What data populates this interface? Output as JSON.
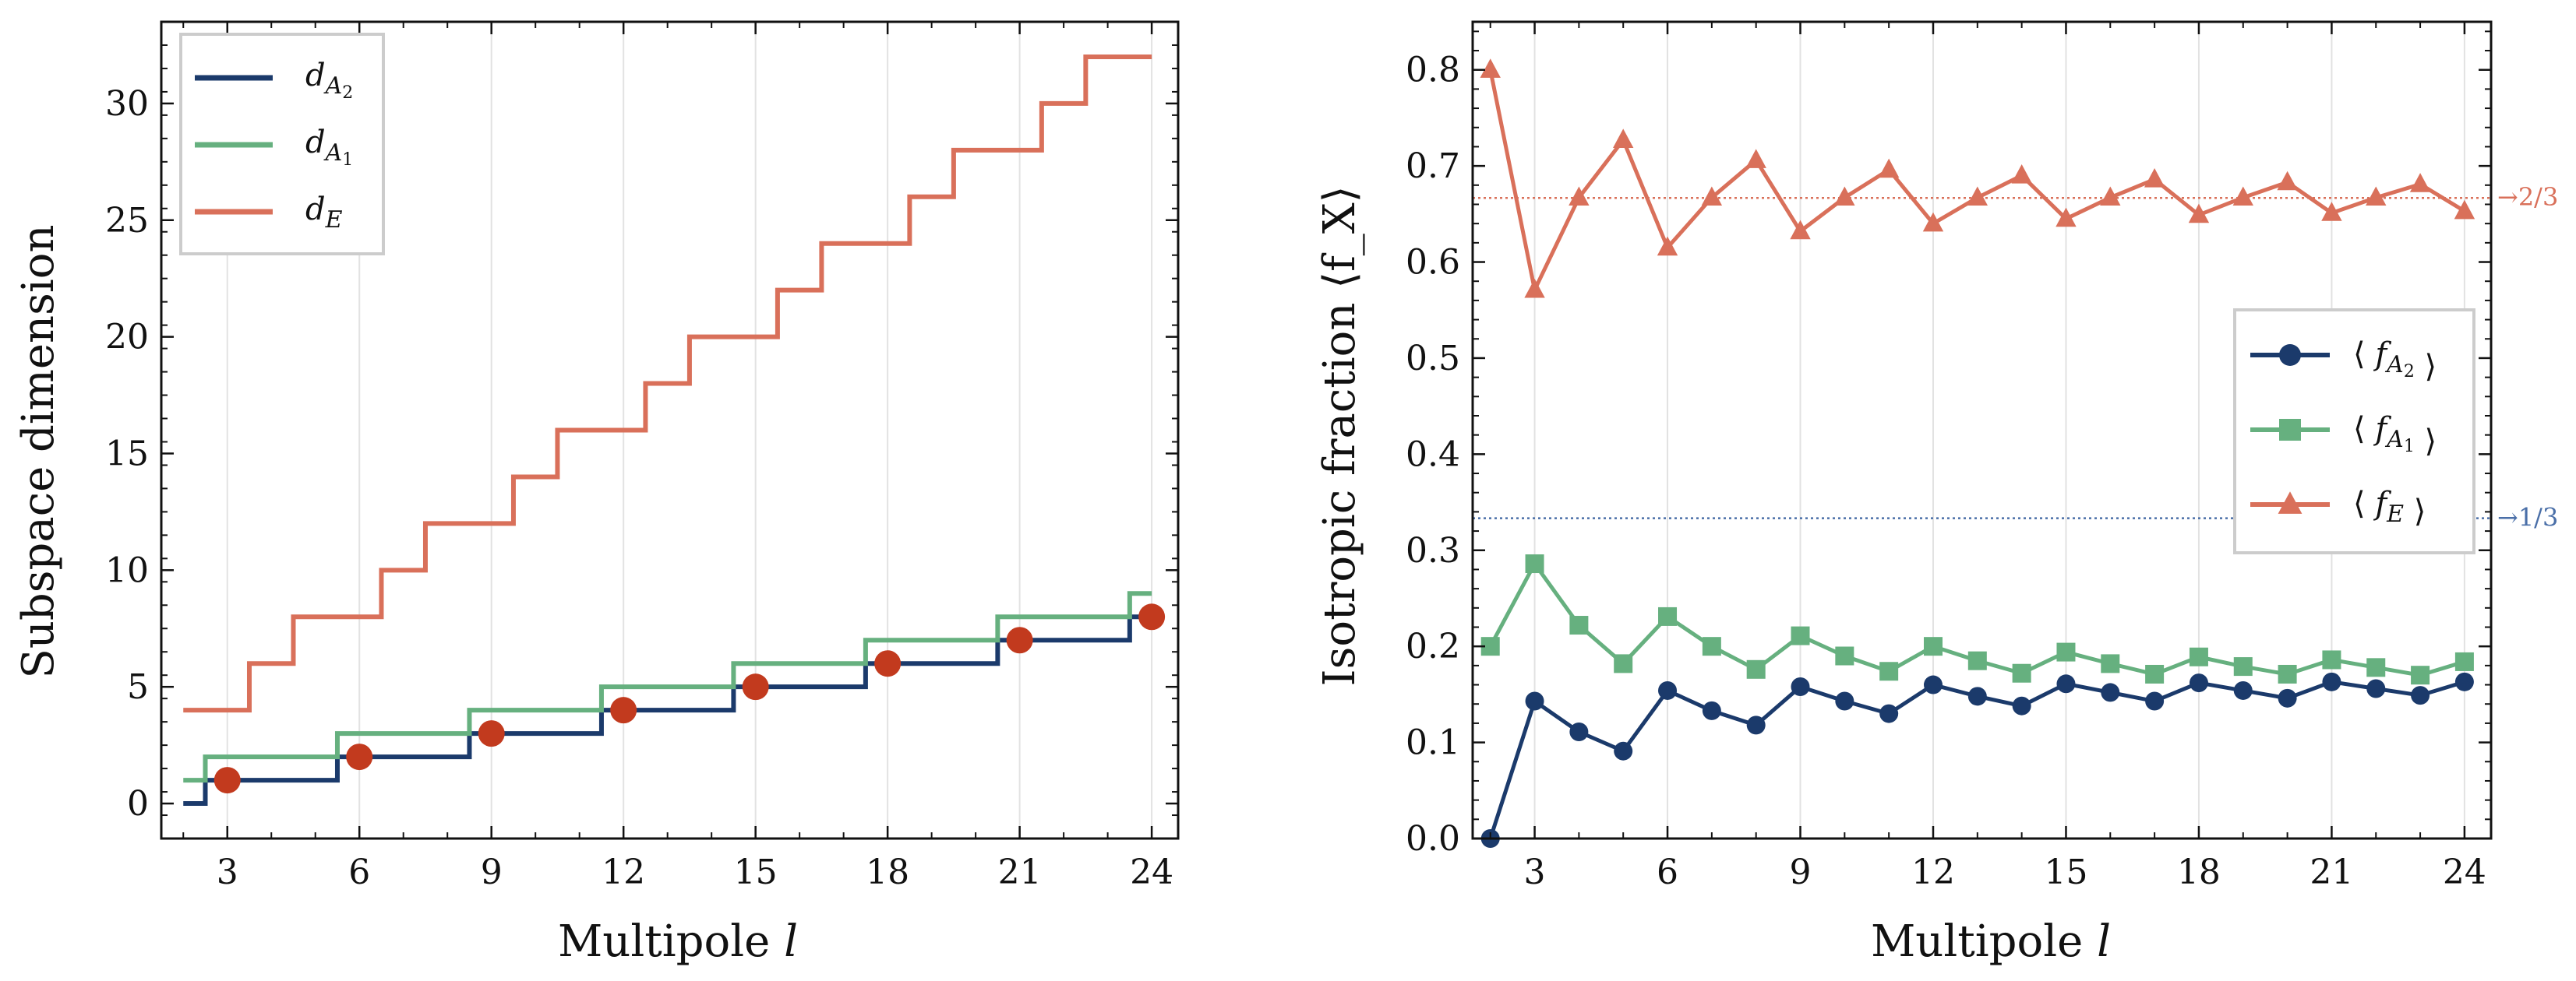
{
  "colors": {
    "a2": "#1b3a6b",
    "a1": "#66b07f",
    "e": "#d9705a",
    "marker": "#c23a1e",
    "ref_e": "#d9705a",
    "ref_a": "#4a6fa8"
  },
  "chart_data": [
    {
      "type": "line",
      "title": "",
      "xlabel": "Multipole l",
      "ylabel": "Subspace dimension",
      "xlim": [
        1.5,
        24.6
      ],
      "ylim": [
        -1.5,
        33.5
      ],
      "xticks": [
        3,
        6,
        9,
        12,
        15,
        18,
        21,
        24
      ],
      "yticks": [
        0,
        5,
        10,
        15,
        20,
        25,
        30
      ],
      "grid": "vertical",
      "legend": "top-left",
      "series": [
        {
          "name": "d_{A2}",
          "key": "a2",
          "step": true,
          "x": [
            2,
            3,
            4,
            5,
            6,
            7,
            8,
            9,
            10,
            11,
            12,
            13,
            14,
            15,
            16,
            17,
            18,
            19,
            20,
            21,
            22,
            23,
            24
          ],
          "values": [
            0,
            1,
            1,
            1,
            2,
            2,
            2,
            3,
            3,
            3,
            4,
            4,
            4,
            5,
            5,
            5,
            6,
            6,
            6,
            7,
            7,
            7,
            8
          ]
        },
        {
          "name": "d_{A1}",
          "key": "a1",
          "step": true,
          "x": [
            2,
            3,
            4,
            5,
            6,
            7,
            8,
            9,
            10,
            11,
            12,
            13,
            14,
            15,
            16,
            17,
            18,
            19,
            20,
            21,
            22,
            23,
            24
          ],
          "values": [
            1,
            2,
            2,
            2,
            3,
            3,
            3,
            4,
            4,
            4,
            5,
            5,
            5,
            6,
            6,
            6,
            7,
            7,
            7,
            8,
            8,
            8,
            9
          ]
        },
        {
          "name": "d_E",
          "key": "e",
          "step": true,
          "x": [
            2,
            3,
            4,
            5,
            6,
            7,
            8,
            9,
            10,
            11,
            12,
            13,
            14,
            15,
            16,
            17,
            18,
            19,
            20,
            21,
            22,
            23,
            24
          ],
          "values": [
            4,
            4,
            6,
            8,
            8,
            10,
            12,
            12,
            14,
            16,
            16,
            18,
            20,
            20,
            22,
            24,
            24,
            26,
            28,
            28,
            30,
            32,
            32
          ]
        },
        {
          "name": "",
          "key": "marker",
          "markers_only": true,
          "x": [
            3,
            6,
            9,
            12,
            15,
            18,
            21,
            24
          ],
          "values": [
            1,
            2,
            3,
            4,
            5,
            6,
            7,
            8
          ]
        }
      ]
    },
    {
      "type": "line",
      "title": "",
      "xlabel": "Multipole l",
      "ylabel": "Isotropic fraction ⟨f_X⟩",
      "xlim": [
        1.6,
        24.6
      ],
      "ylim": [
        0.0,
        0.85
      ],
      "xticks": [
        3,
        6,
        9,
        12,
        15,
        18,
        21,
        24
      ],
      "yticks": [
        0.0,
        0.1,
        0.2,
        0.3,
        0.4,
        0.5,
        0.6,
        0.7,
        0.8
      ],
      "ytick_labels": [
        "0.0",
        "0.1",
        "0.2",
        "0.3",
        "0.4",
        "0.5",
        "0.6",
        "0.7",
        "0.8"
      ],
      "grid": "vertical",
      "legend": "center-right",
      "series": [
        {
          "name": "⟨f_{A2}⟩",
          "key": "a2",
          "marker": "circle",
          "x": [
            2,
            3,
            4,
            5,
            6,
            7,
            8,
            9,
            10,
            11,
            12,
            13,
            14,
            15,
            16,
            17,
            18,
            19,
            20,
            21,
            22,
            23,
            24
          ],
          "values": [
            0.0,
            0.143,
            0.111,
            0.091,
            0.154,
            0.133,
            0.118,
            0.158,
            0.143,
            0.13,
            0.16,
            0.148,
            0.138,
            0.161,
            0.152,
            0.143,
            0.162,
            0.154,
            0.146,
            0.163,
            0.156,
            0.149,
            0.163
          ]
        },
        {
          "name": "⟨f_{A1}⟩",
          "key": "a1",
          "marker": "square",
          "x": [
            2,
            3,
            4,
            5,
            6,
            7,
            8,
            9,
            10,
            11,
            12,
            13,
            14,
            15,
            16,
            17,
            18,
            19,
            20,
            21,
            22,
            23,
            24
          ],
          "values": [
            0.2,
            0.286,
            0.222,
            0.182,
            0.231,
            0.2,
            0.176,
            0.211,
            0.19,
            0.174,
            0.2,
            0.185,
            0.172,
            0.194,
            0.182,
            0.171,
            0.189,
            0.179,
            0.171,
            0.186,
            0.178,
            0.17,
            0.184
          ]
        },
        {
          "name": "⟨f_E⟩",
          "key": "e",
          "marker": "triangle",
          "x": [
            2,
            3,
            4,
            5,
            6,
            7,
            8,
            9,
            10,
            11,
            12,
            13,
            14,
            15,
            16,
            17,
            18,
            19,
            20,
            21,
            22,
            23,
            24
          ],
          "values": [
            0.8,
            0.571,
            0.667,
            0.727,
            0.615,
            0.667,
            0.706,
            0.632,
            0.667,
            0.696,
            0.64,
            0.667,
            0.69,
            0.645,
            0.667,
            0.686,
            0.649,
            0.667,
            0.683,
            0.651,
            0.667,
            0.681,
            0.653
          ]
        }
      ],
      "reference_lines": [
        {
          "value": 0.6667,
          "label": "→2/3",
          "key": "ref_e"
        },
        {
          "value": 0.3333,
          "label": "→1/3",
          "key": "ref_a"
        }
      ]
    }
  ]
}
